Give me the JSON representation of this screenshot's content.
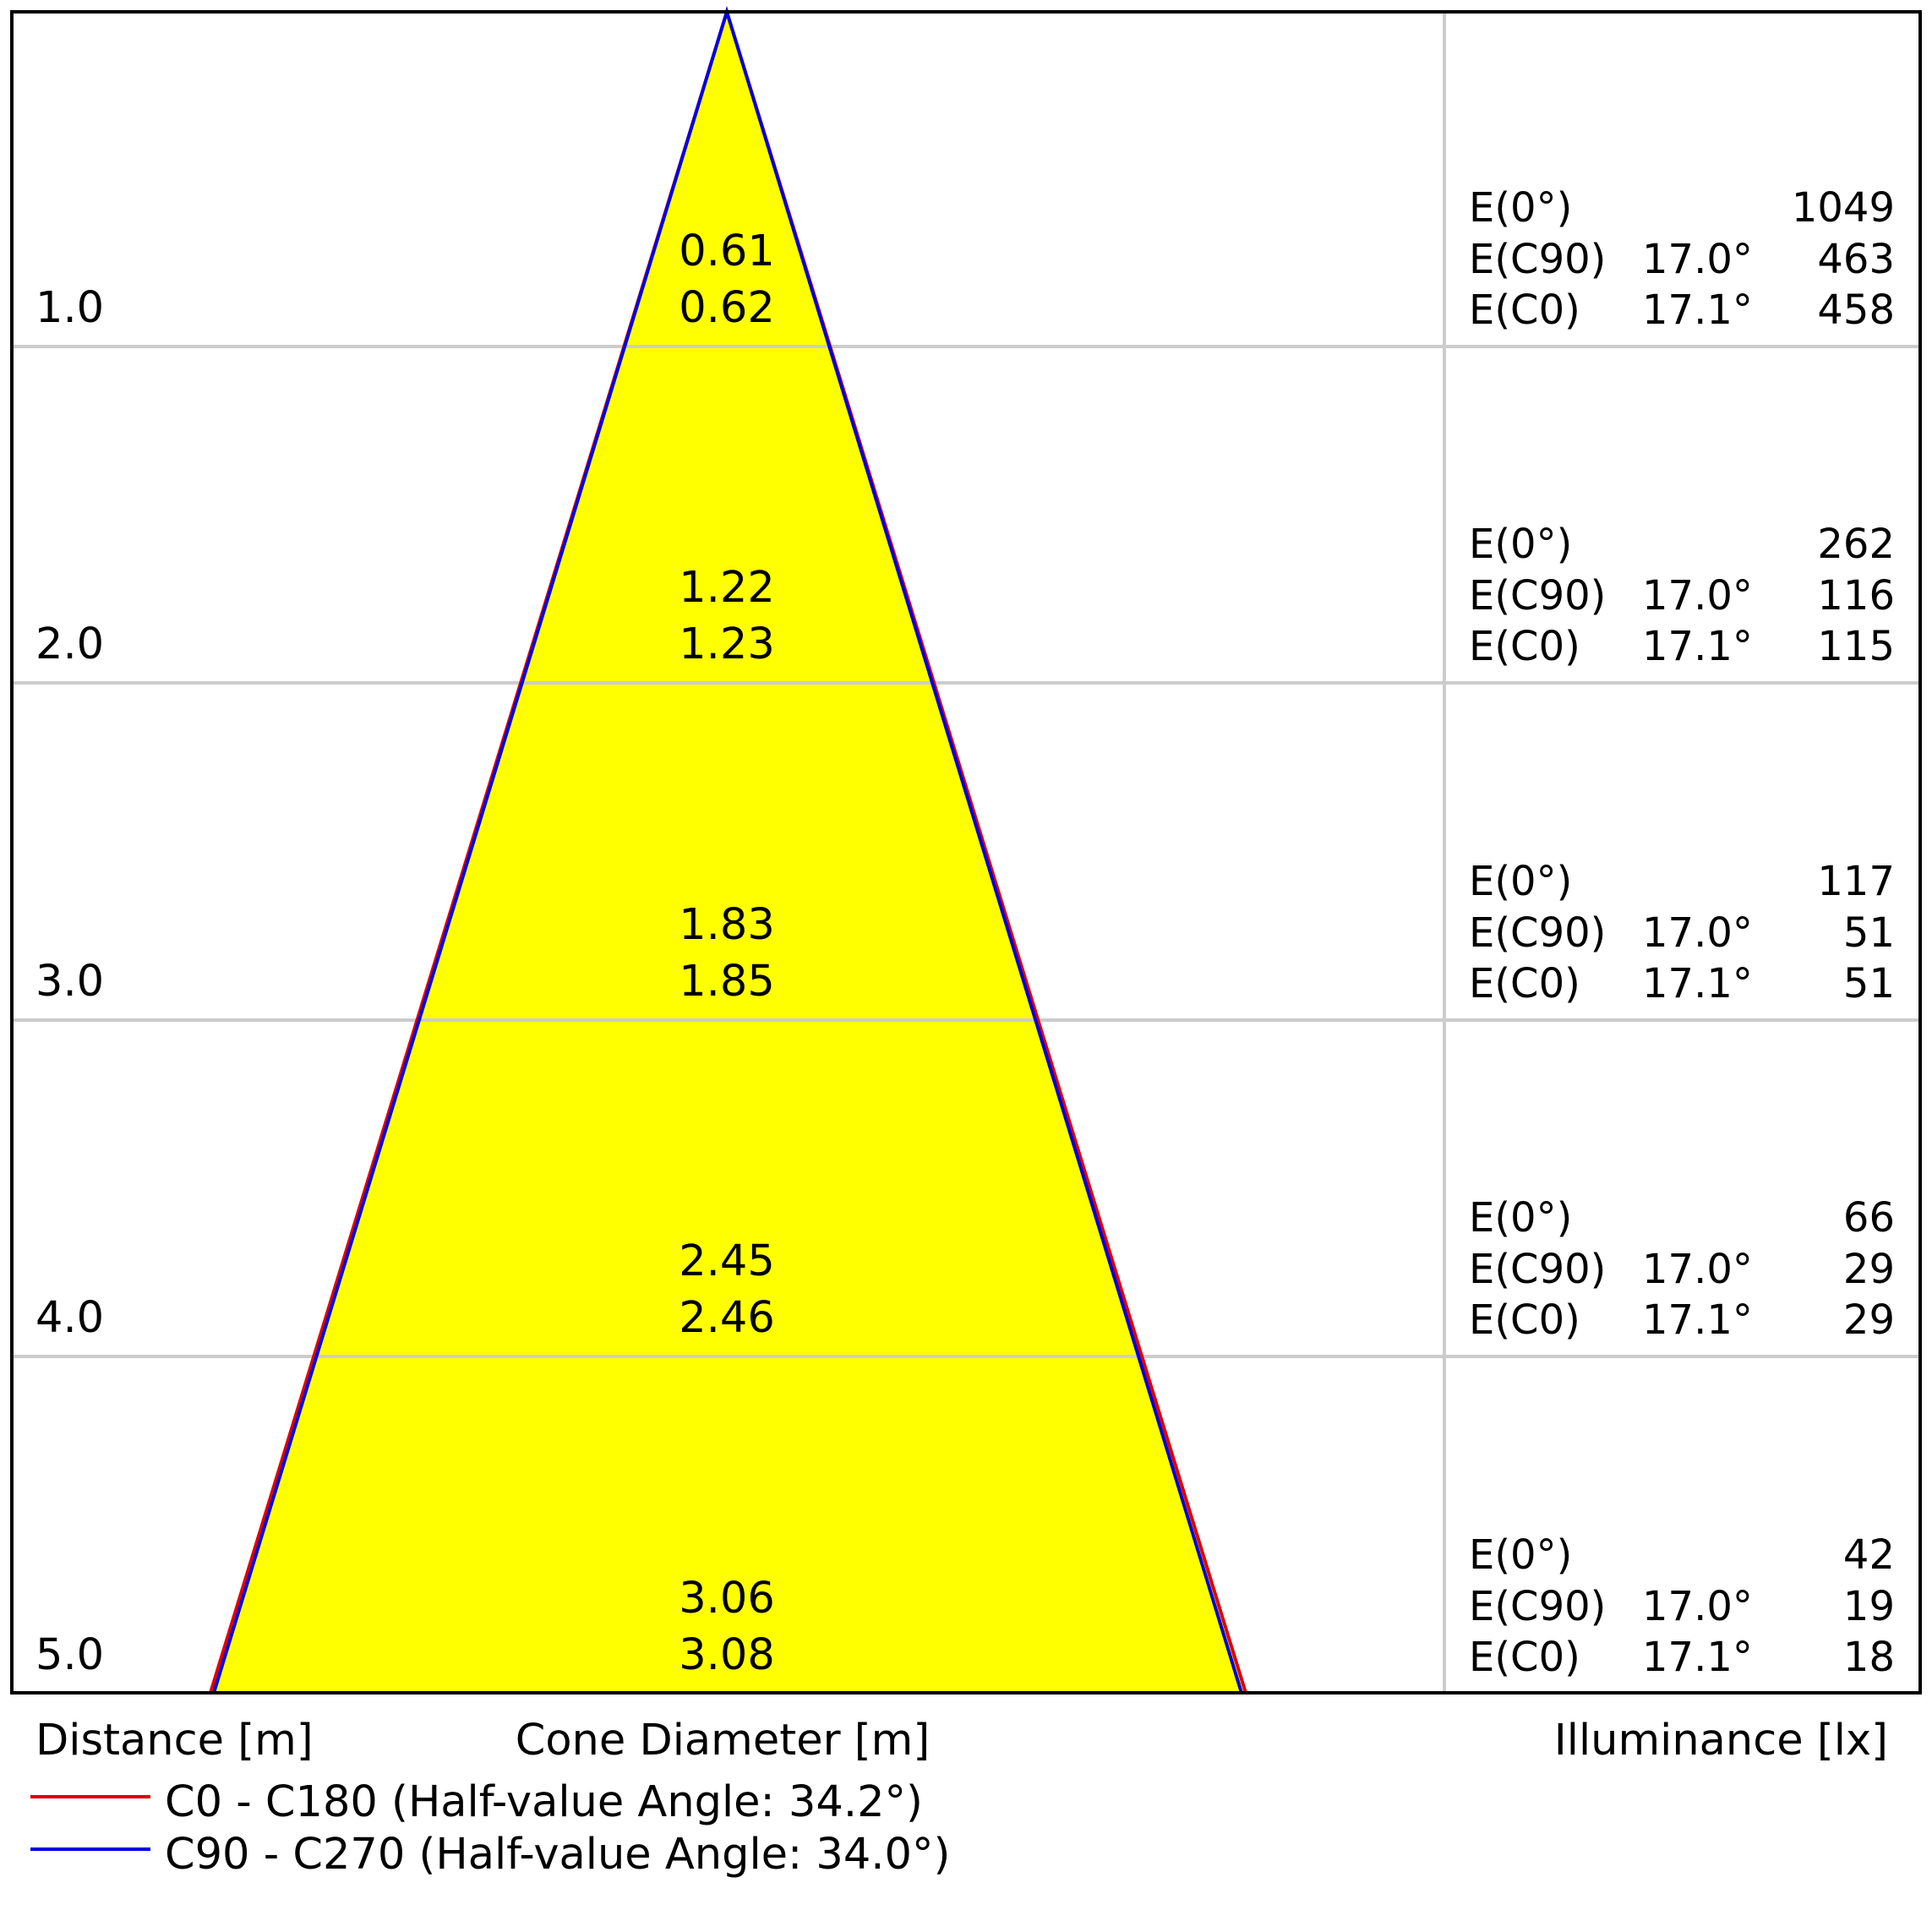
{
  "colors": {
    "cone_fill": "#ffff00",
    "c0_c180_line": "#e00000",
    "c90_c270_line": "#0000e0",
    "grid_line": "#cccccc",
    "frame": "#000000"
  },
  "axis_labels": {
    "distance": "Distance [m]",
    "cone_diameter": "Cone Diameter [m]",
    "illuminance": "Illuminance [lx]"
  },
  "legend": [
    {
      "label": "C0 - C180 (Half-value Angle: 34.2°)",
      "color": "#e00000"
    },
    {
      "label": "C90 - C270 (Half-value Angle: 34.0°)",
      "color": "#0000e0"
    }
  ],
  "rows": [
    {
      "distance": "1.0",
      "diameter_c90": "0.61",
      "diameter_c0": "0.62",
      "e0_label": "E(0°)",
      "e0_value": "1049",
      "ec90_label": "E(C90)",
      "ec90_angle": "17.0°",
      "ec90_value": "463",
      "ec0_label": "E(C0)",
      "ec0_angle": "17.1°",
      "ec0_value": "458"
    },
    {
      "distance": "2.0",
      "diameter_c90": "1.22",
      "diameter_c0": "1.23",
      "e0_label": "E(0°)",
      "e0_value": "262",
      "ec90_label": "E(C90)",
      "ec90_angle": "17.0°",
      "ec90_value": "116",
      "ec0_label": "E(C0)",
      "ec0_angle": "17.1°",
      "ec0_value": "115"
    },
    {
      "distance": "3.0",
      "diameter_c90": "1.83",
      "diameter_c0": "1.85",
      "e0_label": "E(0°)",
      "e0_value": "117",
      "ec90_label": "E(C90)",
      "ec90_angle": "17.0°",
      "ec90_value": "51",
      "ec0_label": "E(C0)",
      "ec0_angle": "17.1°",
      "ec0_value": "51"
    },
    {
      "distance": "4.0",
      "diameter_c90": "2.45",
      "diameter_c0": "2.46",
      "e0_label": "E(0°)",
      "e0_value": "66",
      "ec90_label": "E(C90)",
      "ec90_angle": "17.0°",
      "ec90_value": "29",
      "ec0_label": "E(C0)",
      "ec0_angle": "17.1°",
      "ec0_value": "29"
    },
    {
      "distance": "5.0",
      "diameter_c90": "3.06",
      "diameter_c0": "3.08",
      "e0_label": "E(0°)",
      "e0_value": "42",
      "ec90_label": "E(C90)",
      "ec90_angle": "17.0°",
      "ec90_value": "19",
      "ec0_label": "E(C0)",
      "ec0_angle": "17.1°",
      "ec0_value": "18"
    }
  ]
}
